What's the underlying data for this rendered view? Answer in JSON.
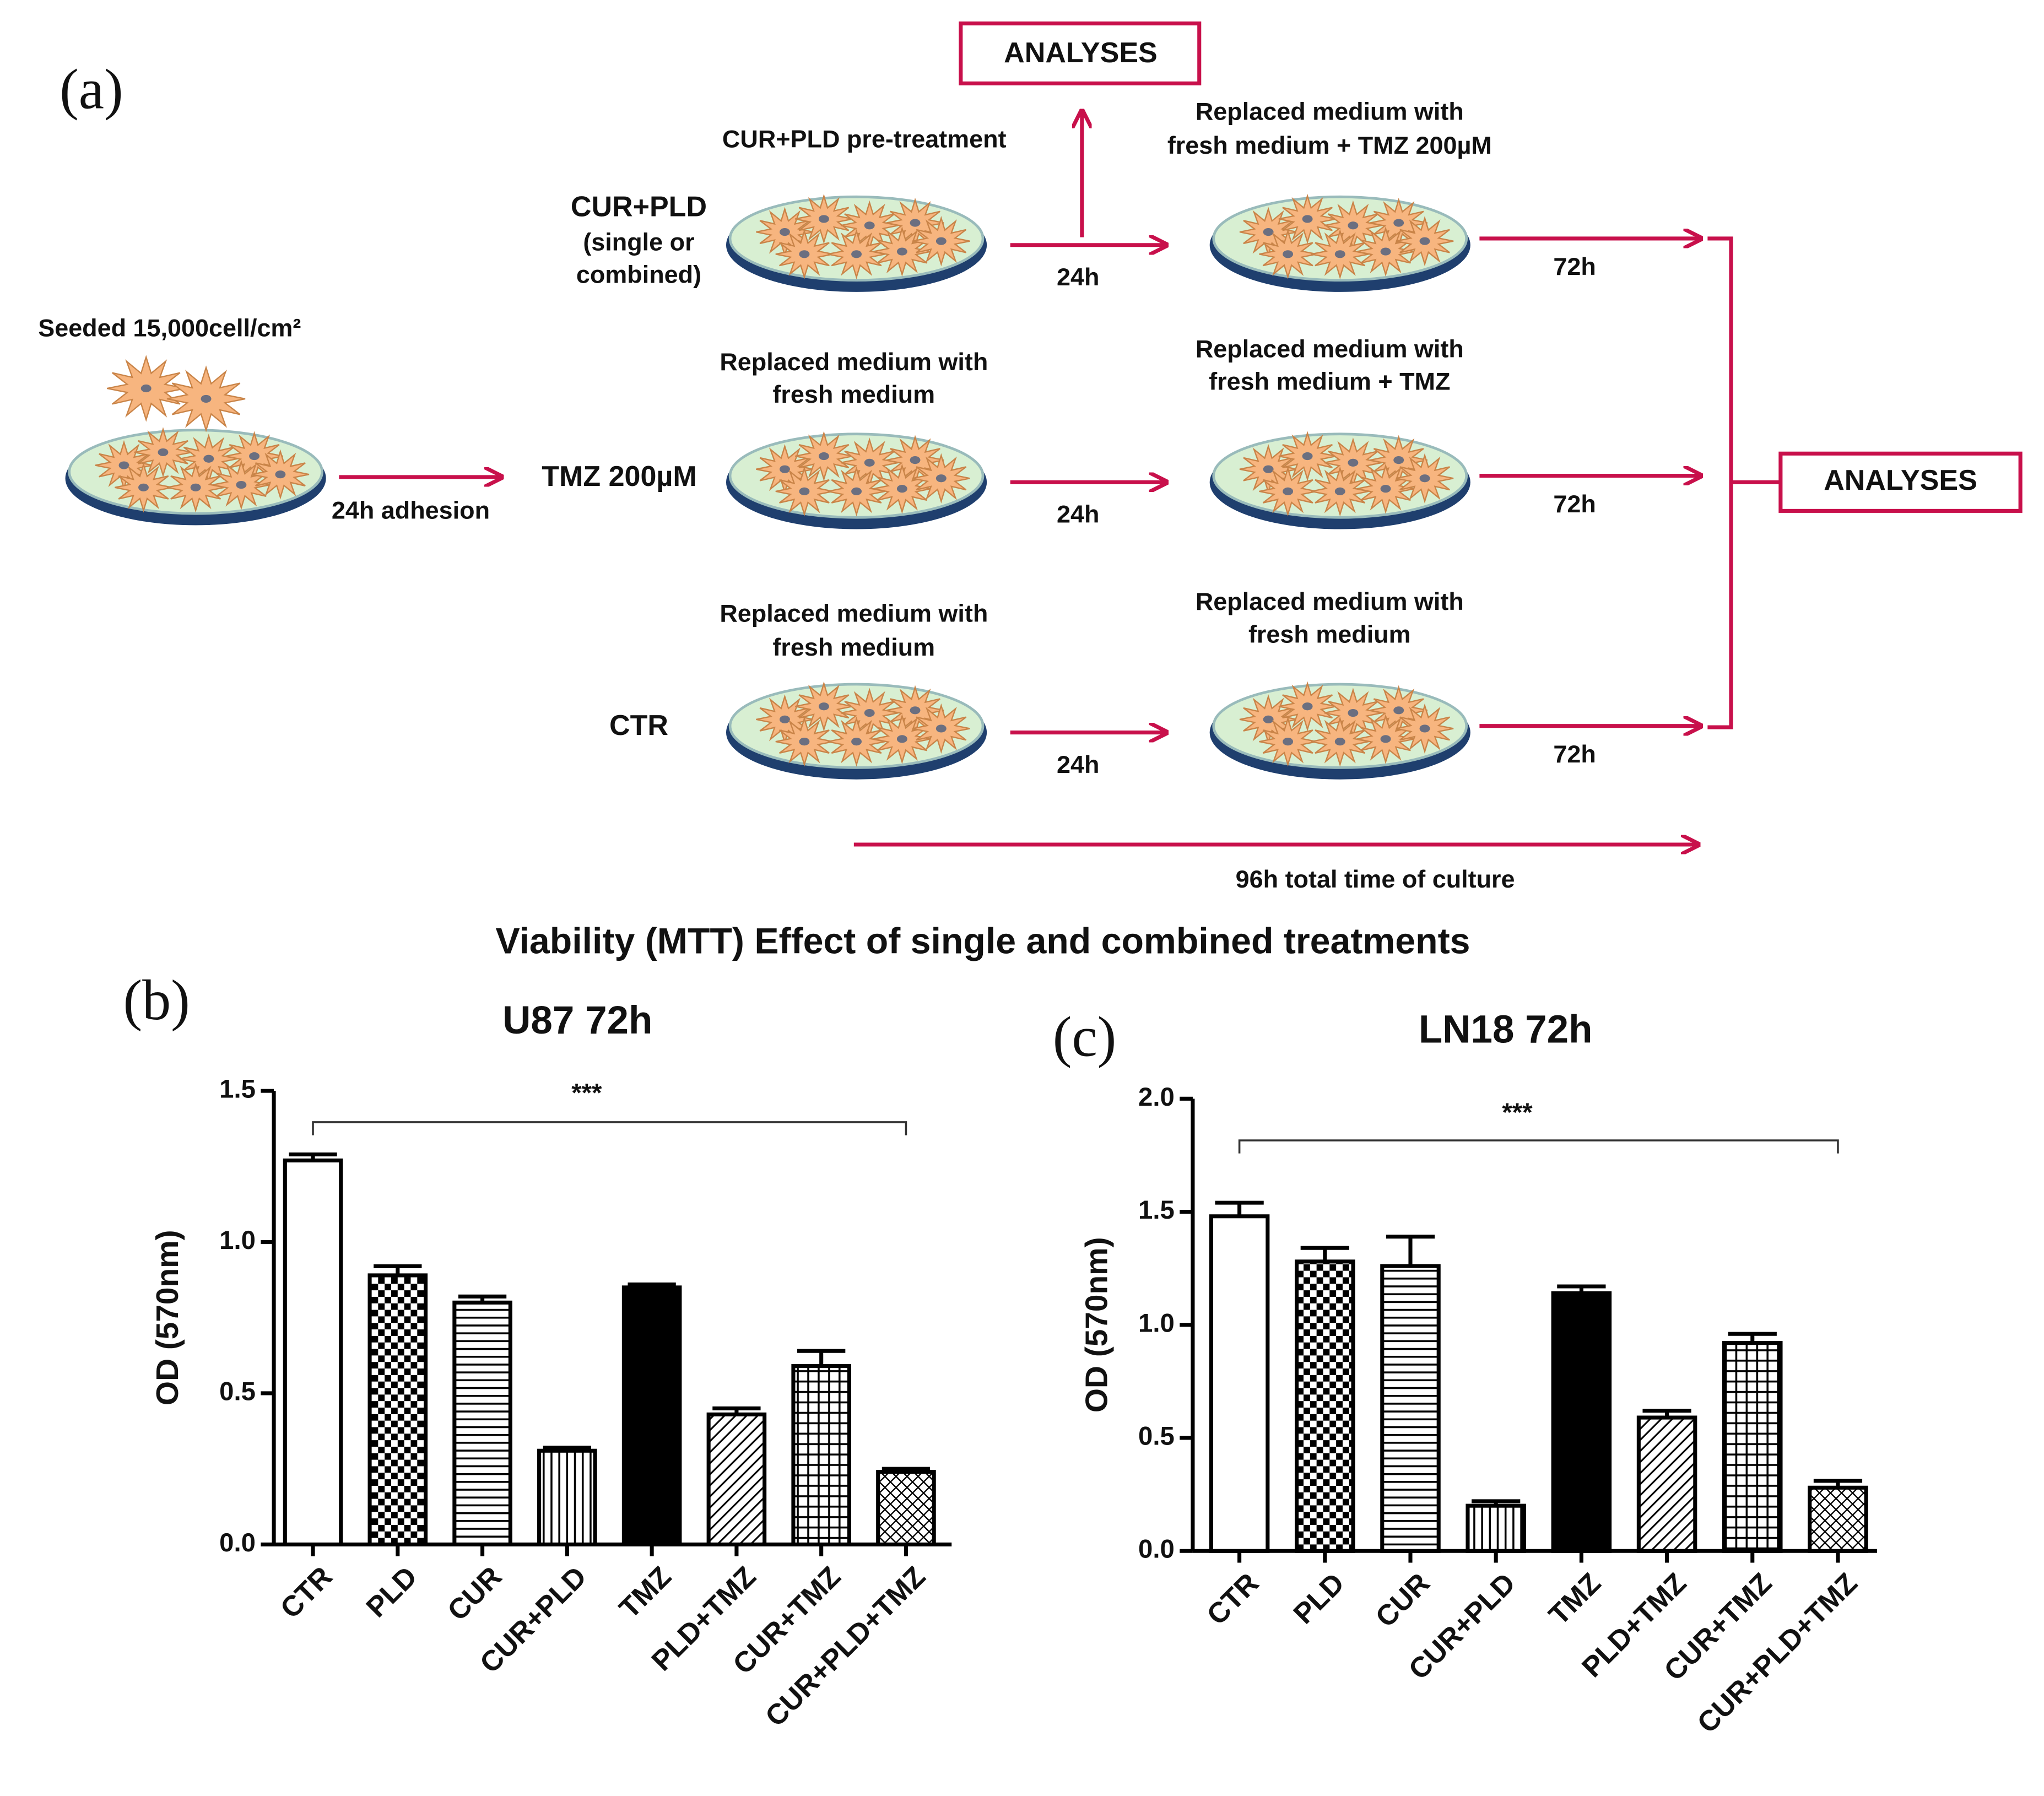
{
  "diagram": {
    "panel_label": "(a)",
    "seeded": "Seeded 15,000cell/cm²",
    "adhesion": "24h adhesion",
    "analyses_top": "ANALYSES",
    "analyses_right": "ANALYSES",
    "total": "96h total time of culture",
    "rows": [
      {
        "group_lines": [
          "CUR+PLD",
          "(single or",
          "combined)"
        ],
        "step1_lines": [
          "CUR+PLD pre-treatment"
        ],
        "time1": "24h",
        "step2_lines": [
          "Replaced medium  with",
          "fresh medium + TMZ 200µM"
        ],
        "time2": "72h"
      },
      {
        "group_lines": [
          "TMZ 200µM"
        ],
        "step1_lines": [
          "Replaced medium  with",
          "fresh medium"
        ],
        "time1": "24h",
        "step2_lines": [
          "Replaced medium  with",
          "fresh medium + TMZ"
        ],
        "time2": "72h"
      },
      {
        "group_lines": [
          "CTR"
        ],
        "step1_lines": [
          "Replaced medium  with",
          "fresh medium"
        ],
        "time1": "24h",
        "step2_lines": [
          "Replaced medium  with",
          "fresh medium"
        ],
        "time2": "72h"
      }
    ]
  },
  "figure_title": "Viability (MTT) Effect of single and combined treatments",
  "chart_data": [
    {
      "type": "bar",
      "panel_label": "(b)",
      "title": "U87 72h",
      "y_label": "OD (570nm)",
      "annotation": "***",
      "categories": [
        "CTR",
        "PLD",
        "CUR",
        "CUR+PLD",
        "TMZ",
        "PLD+TMZ",
        "CUR+TMZ",
        "CUR+PLD+TMZ"
      ],
      "values": [
        1.27,
        0.89,
        0.8,
        0.31,
        0.85,
        0.43,
        0.59,
        0.24
      ],
      "errors": [
        0.02,
        0.03,
        0.02,
        0.01,
        0.01,
        0.02,
        0.05,
        0.01
      ],
      "patterns": [
        "none",
        "checker",
        "hlines",
        "vlines",
        "solid",
        "diagonal",
        "grid",
        "crosshatch"
      ],
      "color": "#000000",
      "ylim": [
        0,
        1.5
      ],
      "yticks": [
        {
          "value": 0,
          "label": "0.0"
        },
        0.5,
        {
          "value": 1,
          "label": "1.0"
        },
        1.5
      ]
    },
    {
      "type": "bar",
      "panel_label": "(c)",
      "title": "LN18 72h",
      "y_label": "OD (570nm)",
      "annotation": "***",
      "categories": [
        "CTR",
        "PLD",
        "CUR",
        "CUR+PLD",
        "TMZ",
        "PLD+TMZ",
        "CUR+TMZ",
        "CUR+PLD+TMZ"
      ],
      "values": [
        1.48,
        1.28,
        1.26,
        0.2,
        1.14,
        0.59,
        0.92,
        0.28
      ],
      "errors": [
        0.06,
        0.06,
        0.13,
        0.02,
        0.03,
        0.03,
        0.04,
        0.03
      ],
      "patterns": [
        "none",
        "checker",
        "hlines",
        "vlines",
        "solid",
        "diagonal",
        "grid",
        "crosshatch"
      ],
      "color": "#000000",
      "ylim": [
        0,
        2
      ],
      "yticks": [
        {
          "value": 0,
          "label": "0.0"
        },
        0.5,
        {
          "value": 1,
          "label": "1.0"
        },
        1.5,
        {
          "value": 2,
          "label": "2.0"
        }
      ]
    }
  ]
}
